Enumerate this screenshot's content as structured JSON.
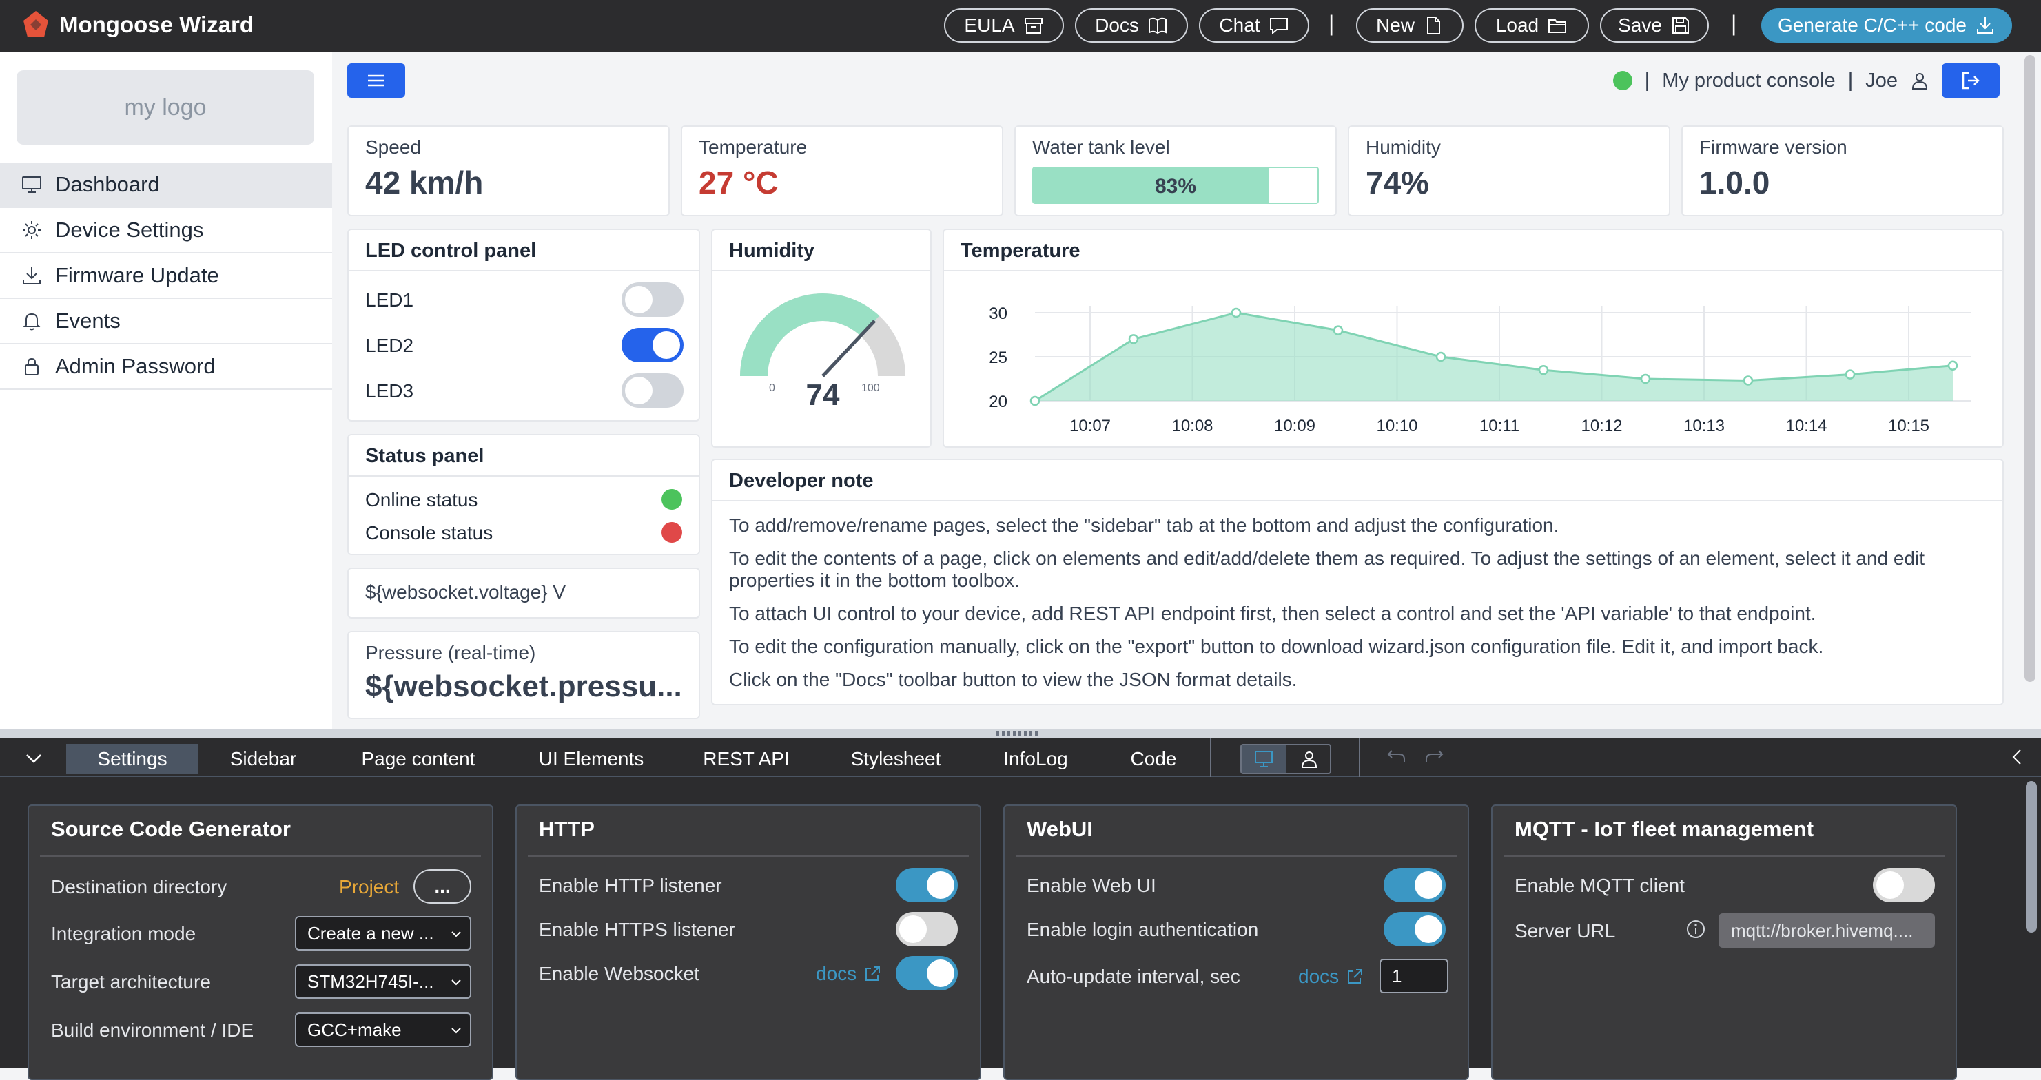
{
  "app": {
    "title": "Mongoose Wizard"
  },
  "toolbar": {
    "eula": "EULA",
    "docs": "Docs",
    "chat": "Chat",
    "sep": "|",
    "new": "New",
    "load": "Load",
    "save": "Save",
    "generate": "Generate C/C++ code"
  },
  "sidebar": {
    "logo": "my logo",
    "items": [
      {
        "label": "Dashboard",
        "icon": "monitor-icon"
      },
      {
        "label": "Device Settings",
        "icon": "gear-icon"
      },
      {
        "label": "Firmware Update",
        "icon": "download-icon"
      },
      {
        "label": "Events",
        "icon": "bell-icon"
      },
      {
        "label": "Admin Password",
        "icon": "lock-icon"
      }
    ]
  },
  "header": {
    "sep": "|",
    "console": "My product console",
    "user": "Joe"
  },
  "stats": {
    "speed": {
      "label": "Speed",
      "value": "42 km/h"
    },
    "temperature": {
      "label": "Temperature",
      "value": "27 °C"
    },
    "water": {
      "label": "Water tank level",
      "value": "83%",
      "level": 0.83
    },
    "humidity": {
      "label": "Humidity",
      "value": "74%"
    },
    "firmware": {
      "label": "Firmware version",
      "value": "1.0.0"
    }
  },
  "led_panel": {
    "title": "LED control panel",
    "leds": [
      {
        "label": "LED1",
        "on": false
      },
      {
        "label": "LED2",
        "on": true
      },
      {
        "label": "LED3",
        "on": false
      }
    ]
  },
  "status_panel": {
    "title": "Status panel",
    "online": "Online status",
    "console": "Console status",
    "colors": {
      "online": "#4cc35c",
      "console": "#e04848"
    }
  },
  "voltage": "${websocket.voltage} V",
  "pressure": {
    "label": "Pressure (real-time)",
    "value": "${websocket.pressu..."
  },
  "humidity_gauge": {
    "title": "Humidity",
    "value": 74,
    "min_label": "0",
    "max_label": "100",
    "display": "74"
  },
  "chart_data": {
    "type": "area",
    "title": "Temperature",
    "x": [
      "10:06.5",
      "10:07",
      "10:08",
      "10:09",
      "10:10",
      "10:11",
      "10:12",
      "10:13",
      "10:14",
      "10:15"
    ],
    "tick_labels": [
      "10:07",
      "10:08",
      "10:09",
      "10:10",
      "10:11",
      "10:12",
      "10:13",
      "10:14",
      "10:15"
    ],
    "values": [
      20,
      27,
      30,
      28,
      25,
      23.5,
      22.5,
      22.3,
      23,
      24
    ],
    "ylim": [
      20,
      30
    ],
    "yticks": [
      "30",
      "25",
      "20"
    ],
    "grid": true,
    "color": "#99e0c4"
  },
  "dev_note": {
    "title": "Developer note",
    "lines": [
      "To add/remove/rename pages, select the \"sidebar\" tab at the bottom and adjust the configuration.",
      "To edit the contents of a page, click on elements and edit/add/delete them as required. To adjust the settings of an element, select it and edit",
      "properties it in the bottom toolbox.",
      "To attach UI control to your device, add REST API endpoint first, then select a control and set the 'API variable' to that endpoint.",
      "To edit the configuration manually, click on the \"export\" button to download wizard.json configuration file. Edit it, and import back.",
      "Click on the \"Docs\" toolbar button to view the JSON format details."
    ]
  },
  "tabs": [
    "Settings",
    "Sidebar",
    "Page content",
    "UI Elements",
    "REST API",
    "Stylesheet",
    "InfoLog",
    "Code"
  ],
  "panels": {
    "codegen": {
      "title": "Source Code Generator",
      "dest_label": "Destination directory",
      "dest_value": "Project",
      "dest_btn": "...",
      "integration_label": "Integration mode",
      "integration_value": "Create a new ...",
      "arch_label": "Target architecture",
      "arch_value": "STM32H745I-...",
      "build_label": "Build environment / IDE",
      "build_value": "GCC+make"
    },
    "http": {
      "title": "HTTP",
      "listener": "Enable HTTP listener",
      "https": "Enable HTTPS listener",
      "ws": "Enable Websocket",
      "docs": "docs"
    },
    "webui": {
      "title": "WebUI",
      "enable": "Enable Web UI",
      "auth": "Enable login authentication",
      "interval": "Auto-update interval, sec",
      "interval_value": "1",
      "docs": "docs"
    },
    "mqtt": {
      "title": "MQTT - IoT fleet management",
      "enable": "Enable MQTT client",
      "url_label": "Server URL",
      "url_value": "mqtt://broker.hivemq...."
    }
  }
}
